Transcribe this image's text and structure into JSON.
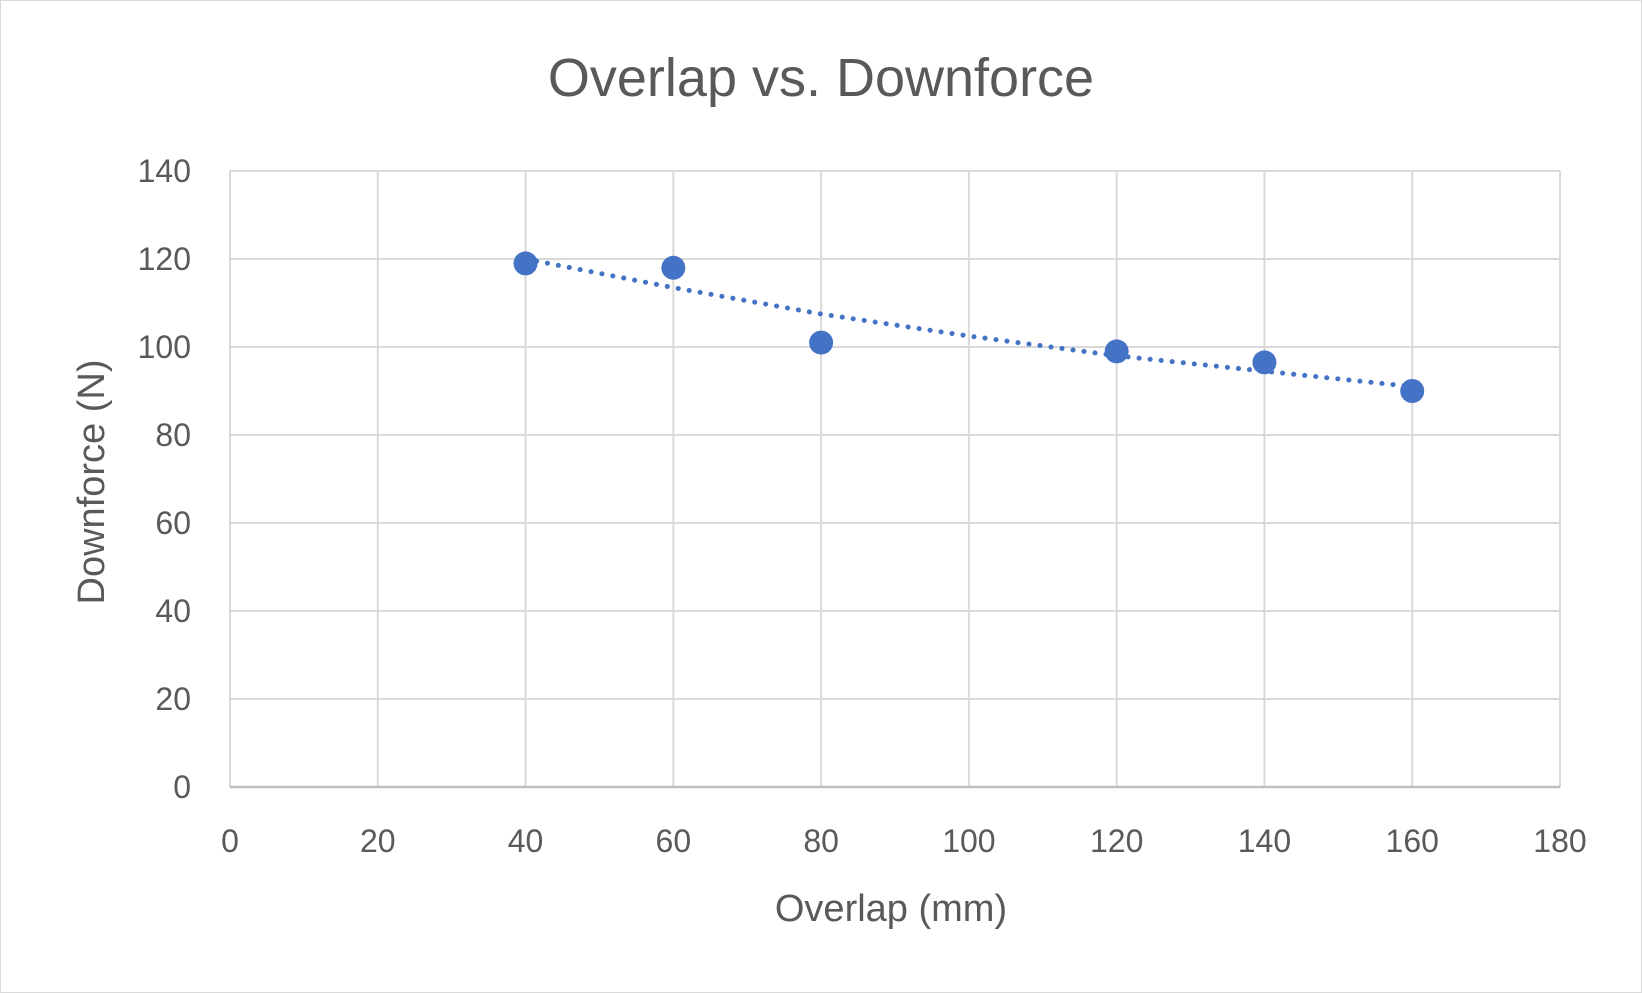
{
  "chart_data": {
    "type": "scatter",
    "title": "Overlap vs. Downforce",
    "xlabel": "Overlap (mm)",
    "ylabel": "Downforce (N)",
    "xlim": [
      0,
      180
    ],
    "ylim": [
      0,
      140
    ],
    "xticks": [
      0,
      20,
      40,
      60,
      80,
      100,
      120,
      140,
      160,
      180
    ],
    "yticks": [
      0,
      20,
      40,
      60,
      80,
      100,
      120,
      140
    ],
    "grid": true,
    "legend": "none",
    "series": [
      {
        "name": "Downforce",
        "color": "#4472c4",
        "x": [
          40,
          60,
          80,
          120,
          140,
          160
        ],
        "y": [
          119,
          118,
          101,
          99,
          96.5,
          90
        ]
      }
    ],
    "trendline": {
      "style": "dotted",
      "color": "#4472c4",
      "x": [
        40,
        60,
        80,
        100,
        120,
        140,
        160
      ],
      "y": [
        120,
        113.5,
        107.5,
        102.5,
        98,
        94.5,
        91
      ]
    }
  }
}
